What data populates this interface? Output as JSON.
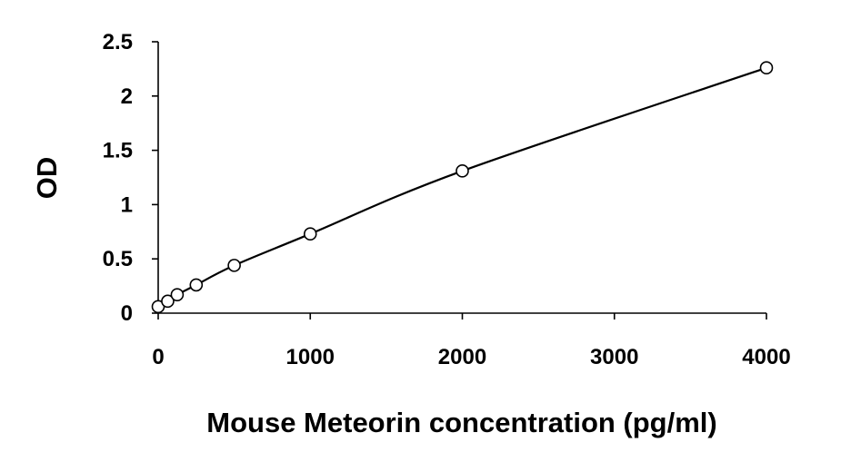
{
  "chart_data": {
    "type": "scatter",
    "title": "",
    "xlabel": "Mouse Meteorin concentration (pg/ml)",
    "ylabel": "OD",
    "xlim": [
      0,
      4000
    ],
    "ylim": [
      0,
      2.5
    ],
    "xticks": [
      0,
      1000,
      2000,
      3000,
      4000
    ],
    "xtick_labels": [
      "0",
      "1000",
      "2000",
      "3000",
      "4000"
    ],
    "yticks": [
      0,
      0.5,
      1,
      1.5,
      2,
      2.5
    ],
    "ytick_labels": [
      "0",
      "0.5",
      "1",
      "1.5",
      "2",
      "2.5"
    ],
    "grid": false,
    "legend": "none",
    "series": [
      {
        "marker": "open-circle",
        "fit_line": "smooth",
        "x": [
          0,
          62.5,
          125,
          250,
          500,
          1000,
          2000,
          4000
        ],
        "y": [
          0.06,
          0.11,
          0.17,
          0.26,
          0.44,
          0.73,
          1.31,
          2.26
        ]
      }
    ]
  }
}
